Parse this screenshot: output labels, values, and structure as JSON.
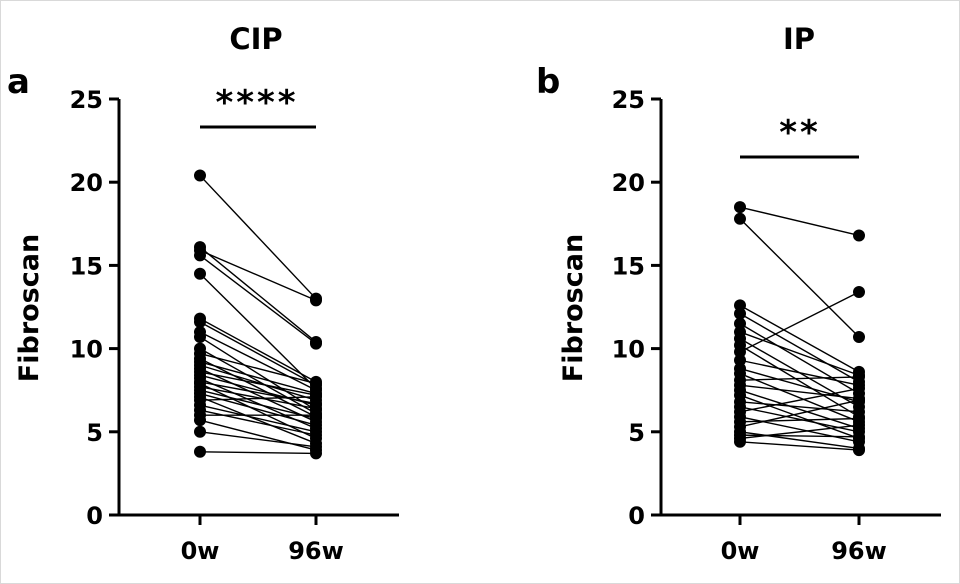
{
  "chart_data": [
    {
      "type": "scatter",
      "panel_label": "a",
      "title": "CIP",
      "ylabel": "Fibroscan",
      "categories": [
        "0w",
        "96w"
      ],
      "ylim": [
        0,
        25
      ],
      "yticks": [
        "0",
        "5",
        "10",
        "15",
        "20",
        "25"
      ],
      "significance": "****",
      "pairs": [
        [
          20.4,
          13.0
        ],
        [
          16.1,
          10.4
        ],
        [
          15.9,
          12.9
        ],
        [
          15.6,
          10.3
        ],
        [
          14.5,
          7.6
        ],
        [
          11.8,
          8.0
        ],
        [
          11.6,
          7.8
        ],
        [
          11.0,
          7.5
        ],
        [
          10.7,
          6.3
        ],
        [
          10.0,
          6.1
        ],
        [
          9.7,
          7.9
        ],
        [
          9.4,
          5.9
        ],
        [
          9.2,
          7.3
        ],
        [
          9.0,
          6.9
        ],
        [
          8.8,
          5.6
        ],
        [
          8.6,
          7.2
        ],
        [
          8.4,
          6.6
        ],
        [
          8.2,
          5.2
        ],
        [
          8.0,
          6.7
        ],
        [
          7.9,
          4.6
        ],
        [
          7.7,
          6.4
        ],
        [
          7.5,
          5.8
        ],
        [
          7.3,
          5.4
        ],
        [
          7.1,
          4.3
        ],
        [
          6.9,
          7.1
        ],
        [
          6.6,
          5.0
        ],
        [
          6.3,
          4.8
        ],
        [
          6.0,
          6.0
        ],
        [
          5.7,
          3.9
        ],
        [
          5.0,
          4.1
        ],
        [
          3.8,
          3.7
        ]
      ]
    },
    {
      "type": "scatter",
      "panel_label": "b",
      "title": "IP",
      "ylabel": "Fibroscan",
      "categories": [
        "0w",
        "96w"
      ],
      "ylim": [
        0,
        25
      ],
      "yticks": [
        "0",
        "5",
        "10",
        "15",
        "20",
        "25"
      ],
      "significance": "**",
      "pairs": [
        [
          18.5,
          16.8
        ],
        [
          17.8,
          10.7
        ],
        [
          12.6,
          8.6
        ],
        [
          12.1,
          8.0
        ],
        [
          11.5,
          7.3
        ],
        [
          11.0,
          8.4
        ],
        [
          10.6,
          6.5
        ],
        [
          10.2,
          5.9
        ],
        [
          9.8,
          13.4
        ],
        [
          9.3,
          7.8
        ],
        [
          8.8,
          6.8
        ],
        [
          8.5,
          5.6
        ],
        [
          8.1,
          8.3
        ],
        [
          7.8,
          7.0
        ],
        [
          7.5,
          5.2
        ],
        [
          7.2,
          4.6
        ],
        [
          6.8,
          6.2
        ],
        [
          6.5,
          5.0
        ],
        [
          6.2,
          7.6
        ],
        [
          5.9,
          4.4
        ],
        [
          5.6,
          5.8
        ],
        [
          5.3,
          6.9
        ],
        [
          5.0,
          4.0
        ],
        [
          4.8,
          4.7
        ],
        [
          4.6,
          5.4
        ],
        [
          4.4,
          3.9
        ]
      ]
    }
  ]
}
